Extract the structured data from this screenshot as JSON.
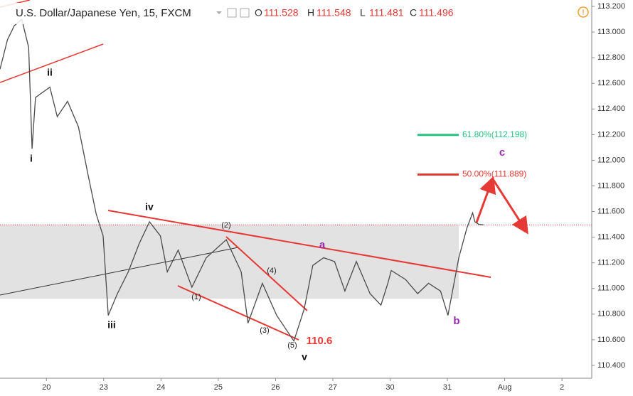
{
  "chart_data": {
    "type": "line",
    "title": "U.S. Dollar/Japanese Yen, 15, FXCM",
    "ohlc": [
      {
        "label": "O",
        "value": 111.528
      },
      {
        "label": "H",
        "value": 111.548
      },
      {
        "label": "L",
        "value": 111.481
      },
      {
        "label": "C",
        "value": 111.496
      }
    ],
    "series": [
      {
        "color": "#4a4a4a",
        "x": [
          -0.81,
          -0.68,
          -0.56,
          -0.43,
          -0.31,
          -0.25,
          -0.19,
          0.06,
          0.19,
          0.37,
          0.56,
          0.74,
          0.87,
          0.99,
          1.08,
          1.24,
          1.43,
          1.62,
          1.8,
          1.99,
          2.11,
          2.3,
          2.54,
          2.79,
          3.14,
          3.4,
          3.52,
          3.77,
          4.02,
          4.32,
          4.5,
          4.65,
          4.84,
          5.03,
          5.21,
          5.41,
          5.65,
          5.84,
          5.96,
          6.02,
          6.27,
          6.48,
          6.67,
          6.88,
          7.01,
          7.2,
          7.34,
          7.44,
          7.48,
          7.55,
          7.63
        ],
        "values": [
          112.71,
          112.94,
          113.05,
          113.1,
          112.88,
          112.09,
          112.49,
          112.57,
          112.34,
          112.46,
          112.26,
          111.86,
          111.58,
          111.41,
          110.79,
          110.96,
          111.13,
          111.35,
          111.52,
          111.41,
          111.13,
          111.3,
          111.01,
          111.24,
          111.38,
          111.13,
          110.73,
          111.04,
          110.79,
          110.59,
          110.84,
          111.18,
          111.24,
          111.21,
          110.98,
          111.21,
          110.96,
          110.87,
          111.04,
          111.14,
          111.07,
          110.96,
          111.04,
          110.98,
          110.79,
          111.24,
          111.47,
          111.59,
          111.52,
          111.5,
          111.496
        ]
      }
    ],
    "xlim": [
      -0.81,
      9.52
    ],
    "xticks": [
      {
        "value": 0,
        "label": "20"
      },
      {
        "value": 1,
        "label": "23"
      },
      {
        "value": 2,
        "label": "24"
      },
      {
        "value": 3,
        "label": "25"
      },
      {
        "value": 4,
        "label": "26"
      },
      {
        "value": 5,
        "label": "27"
      },
      {
        "value": 6,
        "label": "30"
      },
      {
        "value": 7,
        "label": "31"
      },
      {
        "value": 8,
        "label": "Aug"
      },
      {
        "value": 9,
        "label": "2"
      }
    ],
    "ylim": [
      110.3,
      113.25
    ],
    "yticks": [
      {
        "value": 110.4,
        "label": "110.400"
      },
      {
        "value": 110.6,
        "label": "110.600"
      },
      {
        "value": 110.8,
        "label": "110.800"
      },
      {
        "value": 111.0,
        "label": "111.000"
      },
      {
        "value": 111.2,
        "label": "111.200"
      },
      {
        "value": 111.4,
        "label": "111.400"
      },
      {
        "value": 111.6,
        "label": "111.600"
      },
      {
        "value": 111.8,
        "label": "111.800"
      },
      {
        "value": 112.0,
        "label": "112.000"
      },
      {
        "value": 112.2,
        "label": "112.200"
      },
      {
        "value": 112.4,
        "label": "112.400"
      },
      {
        "value": 112.6,
        "label": "112.600"
      },
      {
        "value": 112.8,
        "label": "112.800"
      },
      {
        "value": 113.0,
        "label": "113.000"
      },
      {
        "value": 113.2,
        "label": "113.200"
      }
    ],
    "fib_levels": [
      {
        "label": "61.80%(112.198)",
        "value": 112.198,
        "color": "#26c281"
      },
      {
        "label": "50.00%(111.889)",
        "value": 111.889,
        "color": "#e53935"
      }
    ],
    "zone": [
      110.92,
      111.5
    ],
    "waves": [
      "i",
      "ii",
      "iii",
      "iv",
      "v",
      "(1)",
      "(2)",
      "(3)",
      "(4)",
      "(5)",
      "a",
      "b",
      "c",
      "110.6"
    ]
  }
}
